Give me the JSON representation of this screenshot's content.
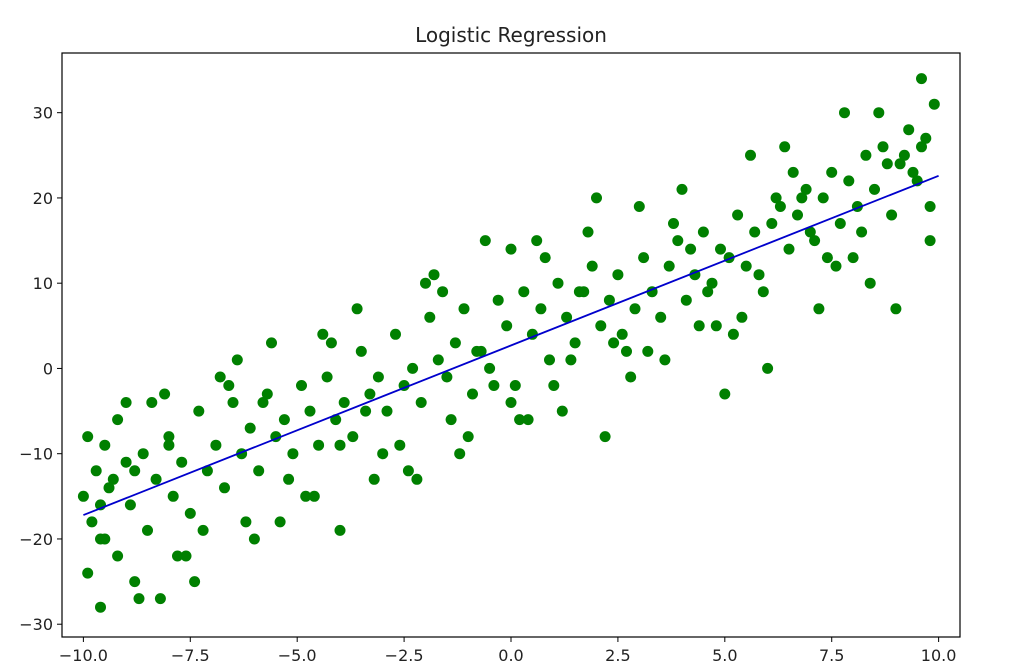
{
  "chart_data": {
    "type": "scatter",
    "title": "Logistic Regression",
    "xlabel": "",
    "ylabel": "",
    "xlim": [
      -10.5,
      10.5
    ],
    "ylim": [
      -31.5,
      37
    ],
    "xticks": [
      -10.0,
      -7.5,
      -5.0,
      -2.5,
      0.0,
      2.5,
      5.0,
      7.5,
      10.0
    ],
    "xtick_labels": [
      "−10.0",
      "−7.5",
      "−5.0",
      "−2.5",
      "0.0",
      "2.5",
      "5.0",
      "7.5",
      "10.0"
    ],
    "yticks": [
      -30,
      -20,
      -10,
      0,
      10,
      20,
      30
    ],
    "ytick_labels": [
      "−30",
      "−20",
      "−10",
      "0",
      "10",
      "20",
      "30"
    ],
    "grid": false,
    "colors": {
      "points": "#008000",
      "line": "#0000cc",
      "axes": "#000000"
    },
    "series": [
      {
        "type": "scatter",
        "note_estimated": true,
        "x": [
          -10.0,
          -9.9,
          -9.8,
          -9.7,
          -9.6,
          -9.5,
          -9.4,
          -9.3,
          -9.2,
          -9.0,
          -8.9,
          -8.8,
          -8.6,
          -8.5,
          -8.3,
          -8.2,
          -8.0,
          -7.9,
          -7.7,
          -7.5,
          -7.3,
          -7.1,
          -6.9,
          -6.7,
          -6.5,
          -6.3,
          -6.1,
          -5.9,
          -5.7,
          -5.5,
          -5.3,
          -5.1,
          -4.9,
          -4.7,
          -4.5,
          -4.3,
          -4.1,
          -3.9,
          -3.7,
          -3.5,
          -3.3,
          -3.1,
          -2.9,
          -2.7,
          -2.5,
          -2.3,
          -2.1,
          -1.9,
          -1.7,
          -1.5,
          -1.3,
          -1.1,
          -0.9,
          -0.7,
          -0.5,
          -0.3,
          -0.1,
          0.1,
          0.3,
          0.5,
          0.7,
          0.9,
          1.1,
          1.3,
          1.5,
          1.7,
          1.9,
          2.1,
          2.3,
          2.5,
          2.7,
          2.9,
          3.1,
          3.3,
          3.5,
          3.7,
          3.9,
          4.1,
          4.3,
          4.5,
          4.7,
          4.9,
          5.1,
          5.3,
          5.5,
          5.7,
          5.9,
          6.1,
          6.3,
          6.5,
          6.7,
          6.9,
          7.1,
          7.3,
          7.5,
          7.7,
          7.9,
          8.1,
          8.3,
          8.5,
          8.7,
          8.9,
          9.1,
          9.3,
          9.5,
          9.7,
          9.9,
          -9.9,
          -9.6,
          -9.2,
          -8.7,
          -8.1,
          -7.6,
          -6.8,
          -6.2,
          -5.6,
          -4.8,
          -4.0,
          -3.6,
          -2.4,
          -1.8,
          -1.2,
          -0.6,
          0.4,
          0.6,
          1.2,
          1.8,
          2.2,
          3.0,
          3.6,
          4.4,
          5.0,
          5.6,
          6.0,
          6.6,
          7.2,
          7.8,
          8.4,
          9.0,
          9.6,
          9.8,
          -9.5,
          -8.4,
          -7.4,
          -6.4,
          -5.2,
          -4.4,
          -3.2,
          -2.0,
          -1.0,
          0.0,
          1.0,
          2.0,
          3.2,
          4.0,
          5.2,
          6.4,
          7.4,
          8.6,
          9.4,
          -9.0,
          -7.8,
          -6.6,
          -5.4,
          -4.2,
          -3.0,
          -1.6,
          -0.4,
          0.8,
          2.4,
          3.8,
          4.8,
          6.2,
          7.6,
          8.8,
          9.8,
          -8.8,
          -7.2,
          -5.8,
          -4.6,
          -3.4,
          -2.2,
          -0.8,
          0.2,
          1.6,
          2.8,
          4.2,
          5.4,
          6.8,
          8.0,
          9.2,
          -9.6,
          -8.0,
          -6.0,
          -4.0,
          -2.6,
          -1.4,
          0.0,
          1.4,
          2.6,
          4.6,
          5.8,
          7.0,
          8.2,
          9.6
        ],
        "y": [
          -15,
          -24,
          -18,
          -12,
          -20,
          -9,
          -14,
          -13,
          -22,
          -11,
          -16,
          -25,
          -10,
          -19,
          -13,
          -27,
          -8,
          -15,
          -11,
          -17,
          -5,
          -12,
          -9,
          -14,
          -4,
          -10,
          -7,
          -12,
          -3,
          -8,
          -6,
          -10,
          -2,
          -5,
          -9,
          -1,
          -6,
          -4,
          -8,
          2,
          -3,
          -1,
          -5,
          4,
          -2,
          0,
          -4,
          6,
          1,
          -1,
          3,
          7,
          -3,
          2,
          0,
          8,
          5,
          -2,
          9,
          4,
          7,
          1,
          10,
          6,
          3,
          9,
          12,
          5,
          8,
          11,
          2,
          7,
          13,
          9,
          6,
          12,
          15,
          8,
          11,
          16,
          10,
          14,
          13,
          18,
          12,
          16,
          9,
          17,
          19,
          14,
          18,
          21,
          15,
          20,
          23,
          17,
          22,
          19,
          25,
          21,
          26,
          18,
          24,
          28,
          22,
          27,
          31,
          -8,
          -28,
          -6,
          -27,
          -3,
          -22,
          -1,
          -18,
          3,
          -15,
          -19,
          7,
          -12,
          11,
          -10,
          15,
          -6,
          15,
          -5,
          16,
          -8,
          19,
          1,
          5,
          -3,
          25,
          0,
          23,
          7,
          30,
          10,
          7,
          34,
          15,
          -20,
          -4,
          -25,
          1,
          -13,
          4,
          -13,
          10,
          -8,
          14,
          -2,
          20,
          2,
          21,
          4,
          26,
          13,
          30,
          23,
          -4,
          -22,
          -2,
          -18,
          3,
          -10,
          9,
          -2,
          13,
          3,
          17,
          5,
          20,
          12,
          24,
          19,
          -12,
          -19,
          -4,
          -15,
          -5,
          -13,
          2,
          -6,
          9,
          -1,
          14,
          6,
          20,
          13,
          25,
          -16,
          -9,
          -20,
          -9,
          -9,
          -6,
          -4,
          1,
          4,
          9,
          11,
          16,
          16,
          26
        ]
      },
      {
        "type": "line",
        "x": [
          -10.0,
          10.0
        ],
        "y": [
          -17.2,
          22.6
        ]
      }
    ]
  }
}
